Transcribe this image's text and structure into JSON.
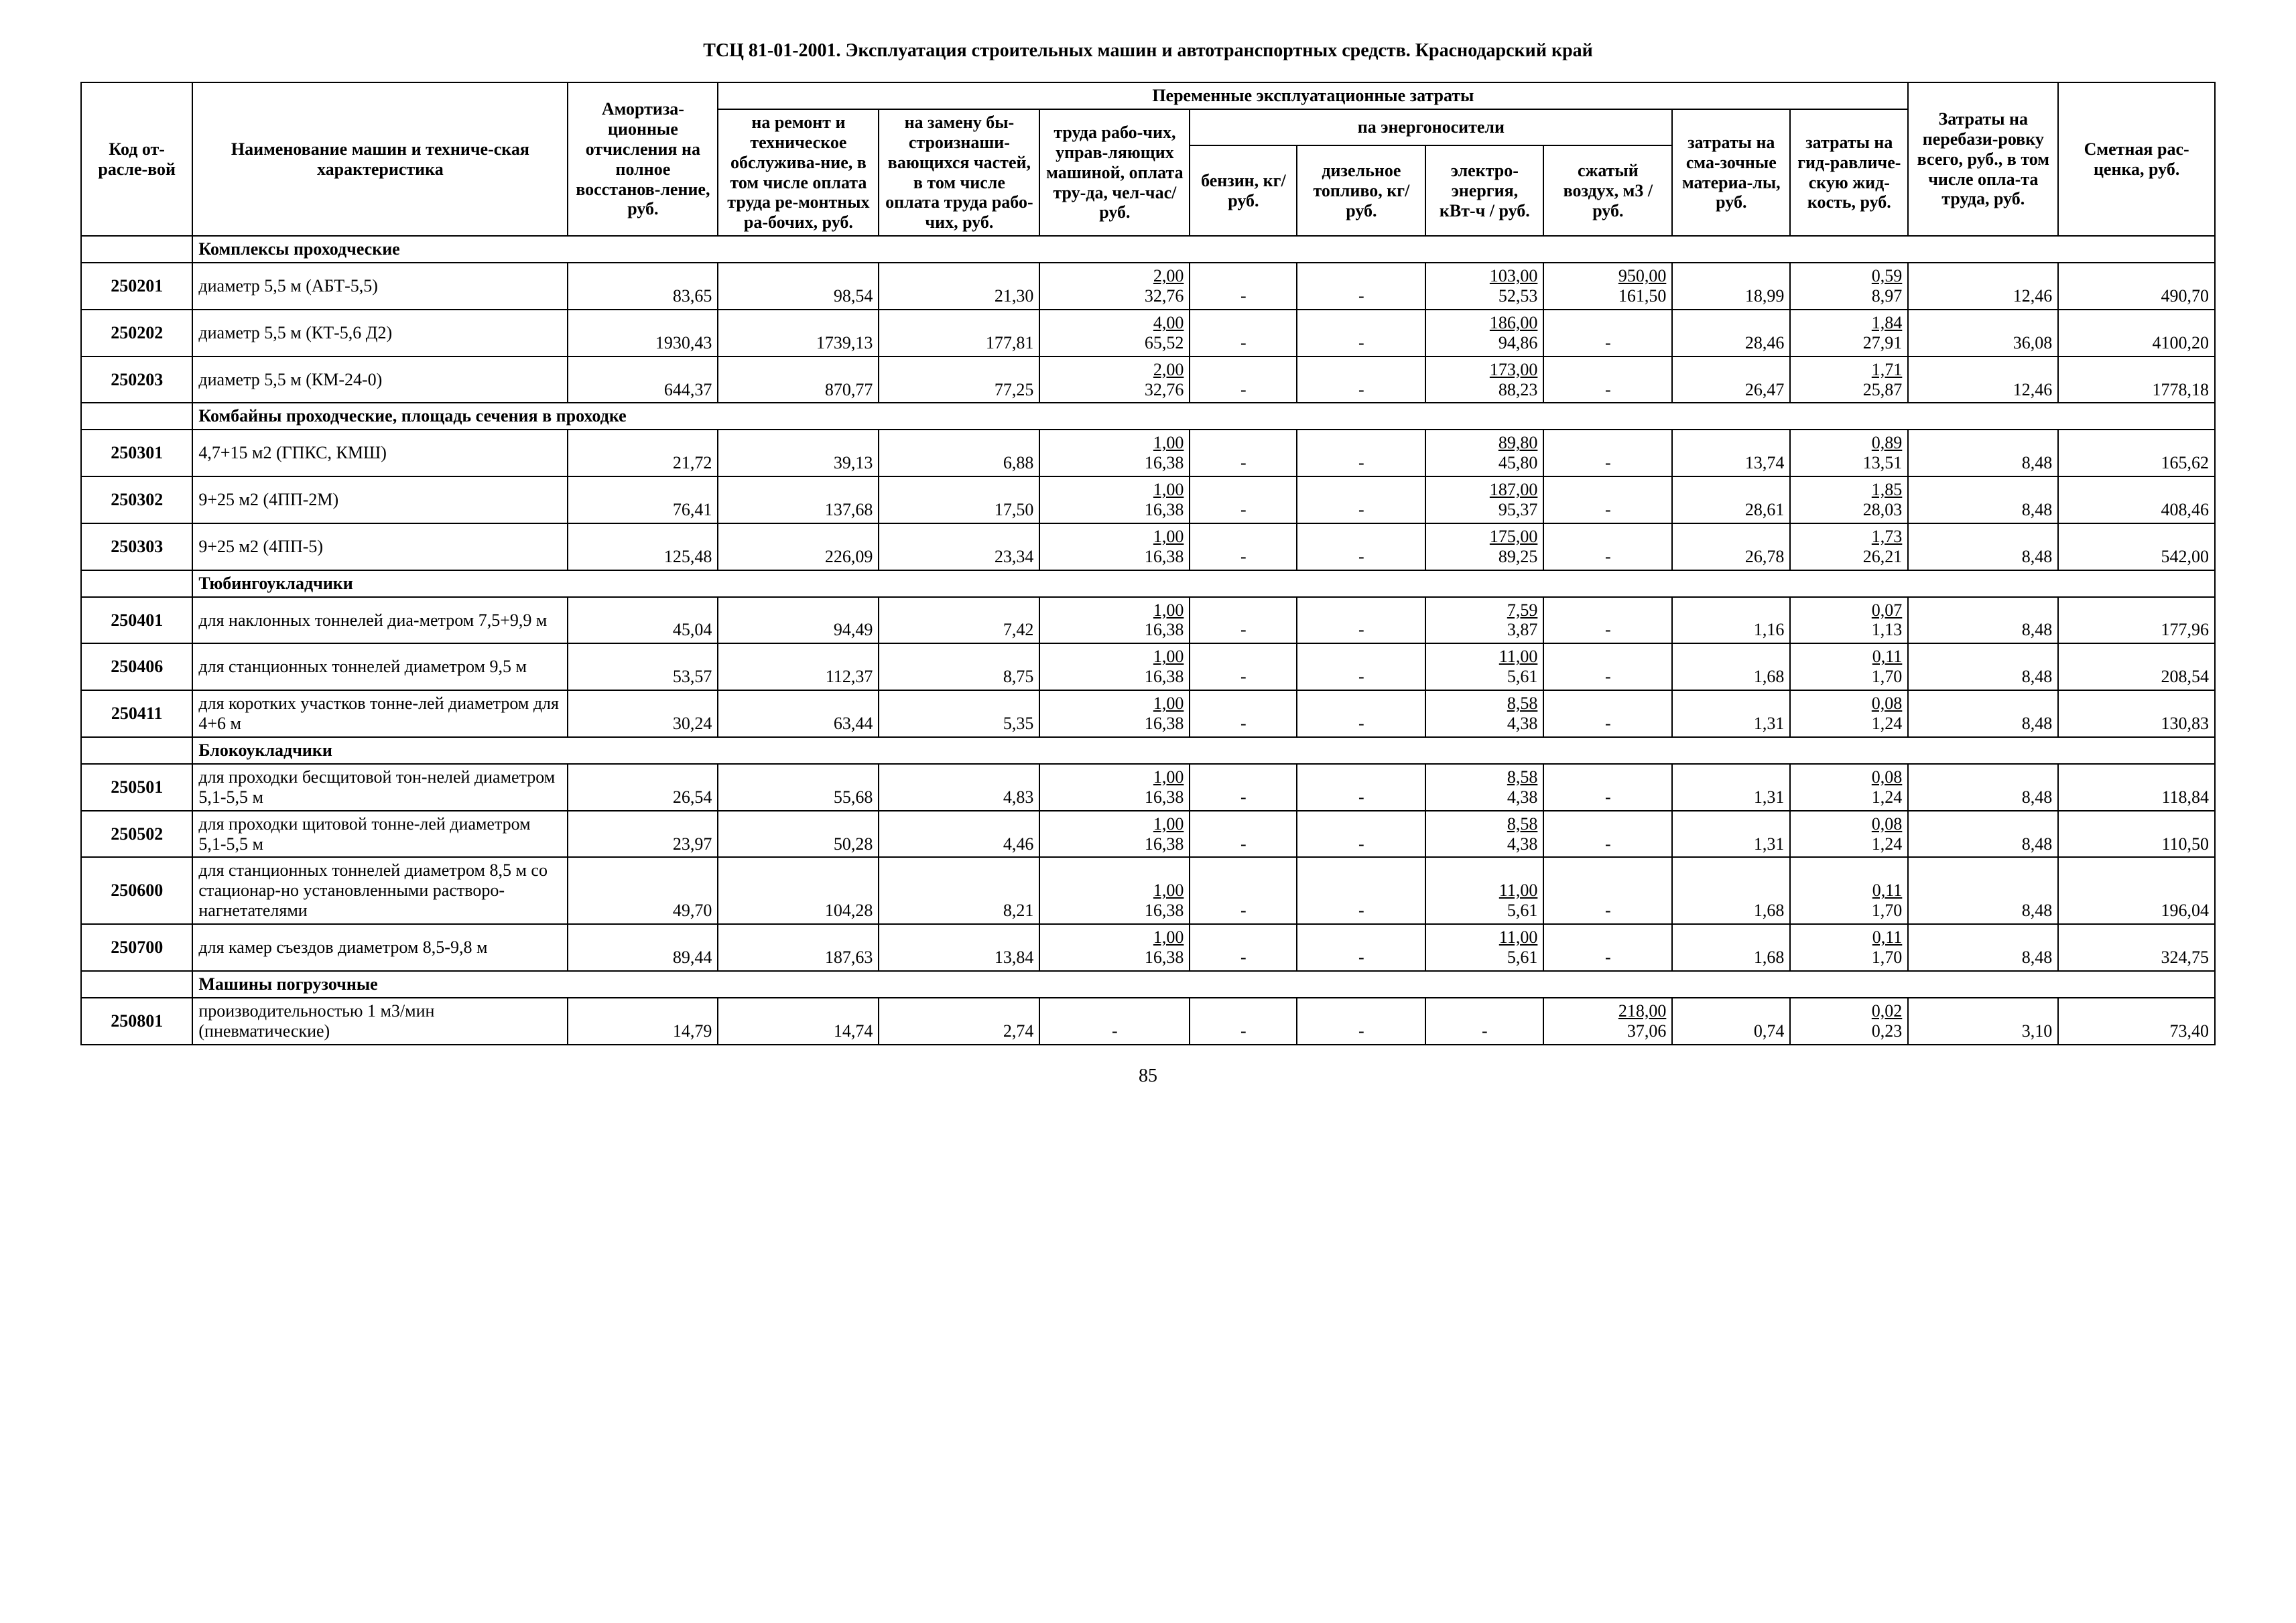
{
  "doc_title": "ТСЦ 81-01-2001. Эксплуатация строительных машин и автотранспортных средств. Краснодарский край",
  "page_number": "85",
  "headers": {
    "code": "Код от-расле-вой",
    "name": "Наименование машин и техниче-ская характеристика",
    "amort": "Амортиза-ционные отчисления на полное восстанов-ление, руб.",
    "var_costs": "Переменные эксплуатационные затраты",
    "repair": "на ремонт и техническое обслужива-ние, в том числе оплата труда ре-монтных ра-бочих, руб.",
    "wear": "на замену бы-строизнаши-вающихся частей, в том числе оплата труда рабо-чих, руб.",
    "labor": "труда рабо-чих, управ-ляющих машиной, оплата тру-да, чел-час/руб.",
    "energy": "па энергоносители",
    "benzin": "бензин, кг/руб.",
    "diesel": "дизельное топливо, кг/руб.",
    "elec": "электро-энергия, кВт-ч / руб.",
    "air": "сжатый воздух, м3 / руб.",
    "lubr": "затраты на сма-зочные материа-лы, руб.",
    "hydr": "затраты на гид-равличе-скую жид-кость, руб.",
    "reloc": "Затраты на перебази-ровку всего, руб., в том числе опла-та труда, руб.",
    "est": "Сметная рас-ценка, руб."
  },
  "sections": [
    {
      "title": "Комплексы проходческие",
      "rows": [
        {
          "code": "250201",
          "name": "диаметр 5,5 м (АБТ-5,5)",
          "amort": "83,65",
          "repair": "98,54",
          "wear": "21,30",
          "labor": [
            "2,00",
            "32,76"
          ],
          "benzin": "-",
          "diesel": "-",
          "elec": [
            "103,00",
            "52,53"
          ],
          "air": [
            "950,00",
            "161,50"
          ],
          "lubr": "18,99",
          "hydr": [
            "0,59",
            "8,97"
          ],
          "reloc": "12,46",
          "est": "490,70"
        },
        {
          "code": "250202",
          "name": "диаметр 5,5 м (КТ-5,6 Д2)",
          "amort": "1930,43",
          "repair": "1739,13",
          "wear": "177,81",
          "labor": [
            "4,00",
            "65,52"
          ],
          "benzin": "-",
          "diesel": "-",
          "elec": [
            "186,00",
            "94,86"
          ],
          "air": "-",
          "lubr": "28,46",
          "hydr": [
            "1,84",
            "27,91"
          ],
          "reloc": "36,08",
          "est": "4100,20"
        },
        {
          "code": "250203",
          "name": "диаметр 5,5 м (КМ-24-0)",
          "amort": "644,37",
          "repair": "870,77",
          "wear": "77,25",
          "labor": [
            "2,00",
            "32,76"
          ],
          "benzin": "-",
          "diesel": "-",
          "elec": [
            "173,00",
            "88,23"
          ],
          "air": "-",
          "lubr": "26,47",
          "hydr": [
            "1,71",
            "25,87"
          ],
          "reloc": "12,46",
          "est": "1778,18"
        }
      ]
    },
    {
      "title": "Комбайны проходческие, площадь сечения в проходке",
      "rows": [
        {
          "code": "250301",
          "name": "4,7+15 м2 (ГПКС, КМШ)",
          "amort": "21,72",
          "repair": "39,13",
          "wear": "6,88",
          "labor": [
            "1,00",
            "16,38"
          ],
          "benzin": "-",
          "diesel": "-",
          "elec": [
            "89,80",
            "45,80"
          ],
          "air": "-",
          "lubr": "13,74",
          "hydr": [
            "0,89",
            "13,51"
          ],
          "reloc": "8,48",
          "est": "165,62"
        },
        {
          "code": "250302",
          "name": "9+25 м2 (4ПП-2М)",
          "amort": "76,41",
          "repair": "137,68",
          "wear": "17,50",
          "labor": [
            "1,00",
            "16,38"
          ],
          "benzin": "-",
          "diesel": "-",
          "elec": [
            "187,00",
            "95,37"
          ],
          "air": "-",
          "lubr": "28,61",
          "hydr": [
            "1,85",
            "28,03"
          ],
          "reloc": "8,48",
          "est": "408,46"
        },
        {
          "code": "250303",
          "name": "9+25 м2 (4ПП-5)",
          "amort": "125,48",
          "repair": "226,09",
          "wear": "23,34",
          "labor": [
            "1,00",
            "16,38"
          ],
          "benzin": "-",
          "diesel": "-",
          "elec": [
            "175,00",
            "89,25"
          ],
          "air": "-",
          "lubr": "26,78",
          "hydr": [
            "1,73",
            "26,21"
          ],
          "reloc": "8,48",
          "est": "542,00"
        }
      ]
    },
    {
      "title": "Тюбингоукладчики",
      "rows": [
        {
          "code": "250401",
          "name": "для наклонных тоннелей диа-метром 7,5+9,9 м",
          "amort": "45,04",
          "repair": "94,49",
          "wear": "7,42",
          "labor": [
            "1,00",
            "16,38"
          ],
          "benzin": "-",
          "diesel": "-",
          "elec": [
            "7,59",
            "3,87"
          ],
          "air": "-",
          "lubr": "1,16",
          "hydr": [
            "0,07",
            "1,13"
          ],
          "reloc": "8,48",
          "est": "177,96"
        },
        {
          "code": "250406",
          "name": "для станционных тоннелей диаметром 9,5 м",
          "amort": "53,57",
          "repair": "112,37",
          "wear": "8,75",
          "labor": [
            "1,00",
            "16,38"
          ],
          "benzin": "-",
          "diesel": "-",
          "elec": [
            "11,00",
            "5,61"
          ],
          "air": "-",
          "lubr": "1,68",
          "hydr": [
            "0,11",
            "1,70"
          ],
          "reloc": "8,48",
          "est": "208,54"
        },
        {
          "code": "250411",
          "name": "для коротких участков тонне-лей диаметром для 4+6 м",
          "amort": "30,24",
          "repair": "63,44",
          "wear": "5,35",
          "labor": [
            "1,00",
            "16,38"
          ],
          "benzin": "-",
          "diesel": "-",
          "elec": [
            "8,58",
            "4,38"
          ],
          "air": "-",
          "lubr": "1,31",
          "hydr": [
            "0,08",
            "1,24"
          ],
          "reloc": "8,48",
          "est": "130,83"
        }
      ]
    },
    {
      "title": "Блокоукладчики",
      "rows": [
        {
          "code": "250501",
          "name": "для проходки бесщитовой тон-нелей диаметром 5,1-5,5 м",
          "amort": "26,54",
          "repair": "55,68",
          "wear": "4,83",
          "labor": [
            "1,00",
            "16,38"
          ],
          "benzin": "-",
          "diesel": "-",
          "elec": [
            "8,58",
            "4,38"
          ],
          "air": "-",
          "lubr": "1,31",
          "hydr": [
            "0,08",
            "1,24"
          ],
          "reloc": "8,48",
          "est": "118,84"
        },
        {
          "code": "250502",
          "name": "для проходки щитовой тонне-лей диаметром 5,1-5,5 м",
          "amort": "23,97",
          "repair": "50,28",
          "wear": "4,46",
          "labor": [
            "1,00",
            "16,38"
          ],
          "benzin": "-",
          "diesel": "-",
          "elec": [
            "8,58",
            "4,38"
          ],
          "air": "-",
          "lubr": "1,31",
          "hydr": [
            "0,08",
            "1,24"
          ],
          "reloc": "8,48",
          "est": "110,50"
        },
        {
          "code": "250600",
          "name": "для станционных тоннелей диаметром 8,5 м со стационар-но установленными растворо-нагнетателями",
          "amort": "49,70",
          "repair": "104,28",
          "wear": "8,21",
          "labor": [
            "1,00",
            "16,38"
          ],
          "benzin": "-",
          "diesel": "-",
          "elec": [
            "11,00",
            "5,61"
          ],
          "air": "-",
          "lubr": "1,68",
          "hydr": [
            "0,11",
            "1,70"
          ],
          "reloc": "8,48",
          "est": "196,04"
        },
        {
          "code": "250700",
          "name": "для камер съездов диаметром 8,5-9,8 м",
          "amort": "89,44",
          "repair": "187,63",
          "wear": "13,84",
          "labor": [
            "1,00",
            "16,38"
          ],
          "benzin": "-",
          "diesel": "-",
          "elec": [
            "11,00",
            "5,61"
          ],
          "air": "-",
          "lubr": "1,68",
          "hydr": [
            "0,11",
            "1,70"
          ],
          "reloc": "8,48",
          "est": "324,75"
        }
      ]
    },
    {
      "title": "Машины погрузочные",
      "rows": [
        {
          "code": "250801",
          "name": "производительностью 1 м3/мин (пневматические)",
          "amort": "14,79",
          "repair": "14,74",
          "wear": "2,74",
          "labor": "-",
          "benzin": "-",
          "diesel": "-",
          "elec": "-",
          "air": [
            "218,00",
            "37,06"
          ],
          "lubr": "0,74",
          "hydr": [
            "0,02",
            "0,23"
          ],
          "reloc": "3,10",
          "est": "73,40"
        }
      ]
    }
  ]
}
